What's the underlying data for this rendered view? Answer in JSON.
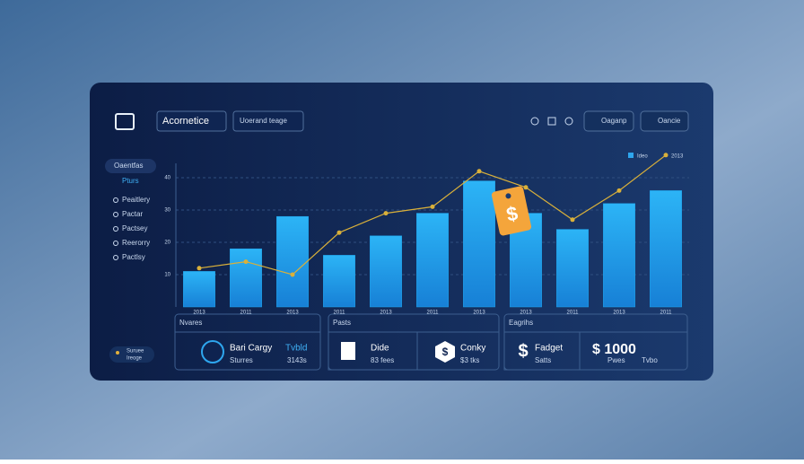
{
  "header": {
    "dropdown_1": "Acornetice",
    "dropdown_2": "Uoerand teage",
    "button_1": "Oaganp",
    "button_2": "Oancie"
  },
  "sidebar": {
    "heading": "Oaentfas",
    "active": "Pturs",
    "items": [
      "Peaitlery",
      "Pactar",
      "Pactsey",
      "Reerorry",
      "Pactlsy"
    ],
    "footer_1": "Suruee",
    "footer_2": "Ireoge"
  },
  "chart_data": {
    "type": "bar",
    "legend": [
      "Ideo",
      "2013"
    ],
    "categories": [
      "2013",
      "2011",
      "2013",
      "2011",
      "2013",
      "2011",
      "2013",
      "2013",
      "2011",
      "2013",
      "2011"
    ],
    "bars": {
      "color": "#1fa6ee",
      "values": [
        11,
        18,
        28,
        16,
        22,
        29,
        39,
        29,
        24,
        32,
        36
      ]
    },
    "line": {
      "color": "#d9b03a",
      "values": [
        12,
        14,
        10,
        23,
        29,
        31,
        42,
        37,
        27,
        36,
        47
      ]
    },
    "ylim": [
      0,
      50
    ],
    "yticks": [
      10,
      20,
      30,
      40
    ],
    "grid": true
  },
  "cards": [
    {
      "title": "Nvares",
      "name": "Bari Cargy",
      "sub": "Sturres",
      "stat": "Tvbld",
      "stat_sub": "3143s"
    },
    {
      "title": "Pasts",
      "name": "Dide",
      "sub": "83 fees"
    },
    {
      "name": "Conky",
      "sub": "$3 tks"
    },
    {
      "title": "Eagrihs",
      "name": "Fadget",
      "sub": "Satts"
    },
    {
      "name": "$ 1000",
      "sub": "Pwes",
      "stat": "Tvbo"
    }
  ]
}
